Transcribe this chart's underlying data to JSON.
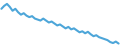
{
  "line_color": "#4da6d9",
  "background_color": "#ffffff",
  "linewidth": 1.5,
  "y_values": [
    72,
    78,
    82,
    76,
    68,
    72,
    65,
    60,
    63,
    58,
    55,
    57,
    52,
    50,
    48,
    52,
    48,
    44,
    46,
    42,
    38,
    40,
    36,
    32,
    35,
    30,
    32,
    28,
    24,
    26,
    22,
    25,
    20,
    16,
    18,
    14,
    12,
    10,
    8,
    4,
    2,
    5,
    1
  ]
}
